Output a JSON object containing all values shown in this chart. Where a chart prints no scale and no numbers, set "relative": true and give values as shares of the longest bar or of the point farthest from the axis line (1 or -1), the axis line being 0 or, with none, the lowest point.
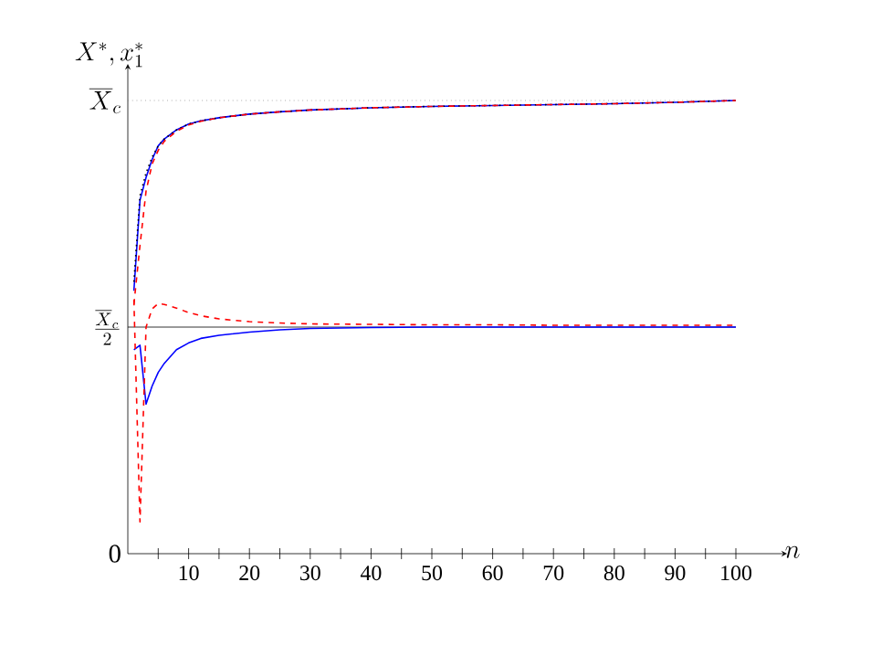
{
  "chart_data": {
    "type": "line",
    "xlabel": "n",
    "ylabel": "X^*, x_1^*",
    "marker": "none",
    "xlim": [
      0,
      100
    ],
    "relative": true,
    "xticks": [
      {
        "value": 5,
        "label": null
      },
      10,
      {
        "value": 15,
        "label": null
      },
      20,
      {
        "value": 25,
        "label": null
      },
      30,
      {
        "value": 35,
        "label": null
      },
      40,
      {
        "value": 45,
        "label": null
      },
      50,
      {
        "value": 55,
        "label": null
      },
      60,
      {
        "value": 65,
        "label": null
      },
      70,
      {
        "value": 75,
        "label": null
      },
      80,
      {
        "value": 85,
        "label": null
      },
      90,
      {
        "value": 95,
        "label": null
      },
      100
    ],
    "x": [
      1,
      2,
      3,
      4,
      5,
      6,
      8,
      10,
      12,
      15,
      20,
      25,
      30,
      40,
      50,
      60,
      70,
      80,
      90,
      100
    ],
    "series": [
      {
        "color": "#0000ff",
        "line_style": "solid",
        "values": [
          0.58,
          0.78,
          0.83,
          0.87,
          0.9,
          0.915,
          0.935,
          0.948,
          0.955,
          0.962,
          0.97,
          0.975,
          0.979,
          0.984,
          0.987,
          0.989,
          0.991,
          0.993,
          0.996,
          1
        ]
      },
      {
        "color": "#000000",
        "line_style": "dotted",
        "values": [
          0.6,
          0.79,
          0.84,
          0.875,
          0.9,
          0.915,
          0.935,
          0.948,
          0.955,
          0.962,
          0.97,
          0.975,
          0.979,
          0.984,
          0.987,
          0.989,
          0.991,
          0.993,
          0.996,
          1
        ]
      },
      {
        "color": "#ff0000",
        "line_style": "dashed",
        "values": [
          0.55,
          0.68,
          0.8,
          0.86,
          0.89,
          0.91,
          0.932,
          0.946,
          0.954,
          0.962,
          0.97,
          0.975,
          0.979,
          0.984,
          0.987,
          0.989,
          0.991,
          0.993,
          0.996,
          1
        ]
      },
      {
        "color": "#0000ff",
        "line_style": "solid",
        "values": [
          0.45,
          0.46,
          0.33,
          0.37,
          0.4,
          0.42,
          0.45,
          0.465,
          0.475,
          0.482,
          0.489,
          0.494,
          0.497,
          0.499,
          0.5,
          0.5,
          0.5,
          0.5,
          0.5,
          0.5
        ]
      },
      {
        "color": "#ff0000",
        "line_style": "dashed",
        "values": [
          0.56,
          0.07,
          0.5,
          0.54,
          0.552,
          0.55,
          0.542,
          0.532,
          0.525,
          0.518,
          0.512,
          0.509,
          0.507,
          0.506,
          0.505,
          0.505,
          0.504,
          0.504,
          0.504,
          0.504
        ]
      }
    ],
    "ref_lines": [
      {
        "axis": "y",
        "value": 1,
        "label": "\\overline{X}_c",
        "color": "#808080",
        "line_style": "dotted"
      },
      {
        "axis": "y",
        "value": 0.5,
        "label": "\\frac{\\overline{X}_c}{2}",
        "color": "#000000",
        "line_style": "solid"
      }
    ],
    "annotations": [
      "0"
    ],
    "grid": false
  }
}
